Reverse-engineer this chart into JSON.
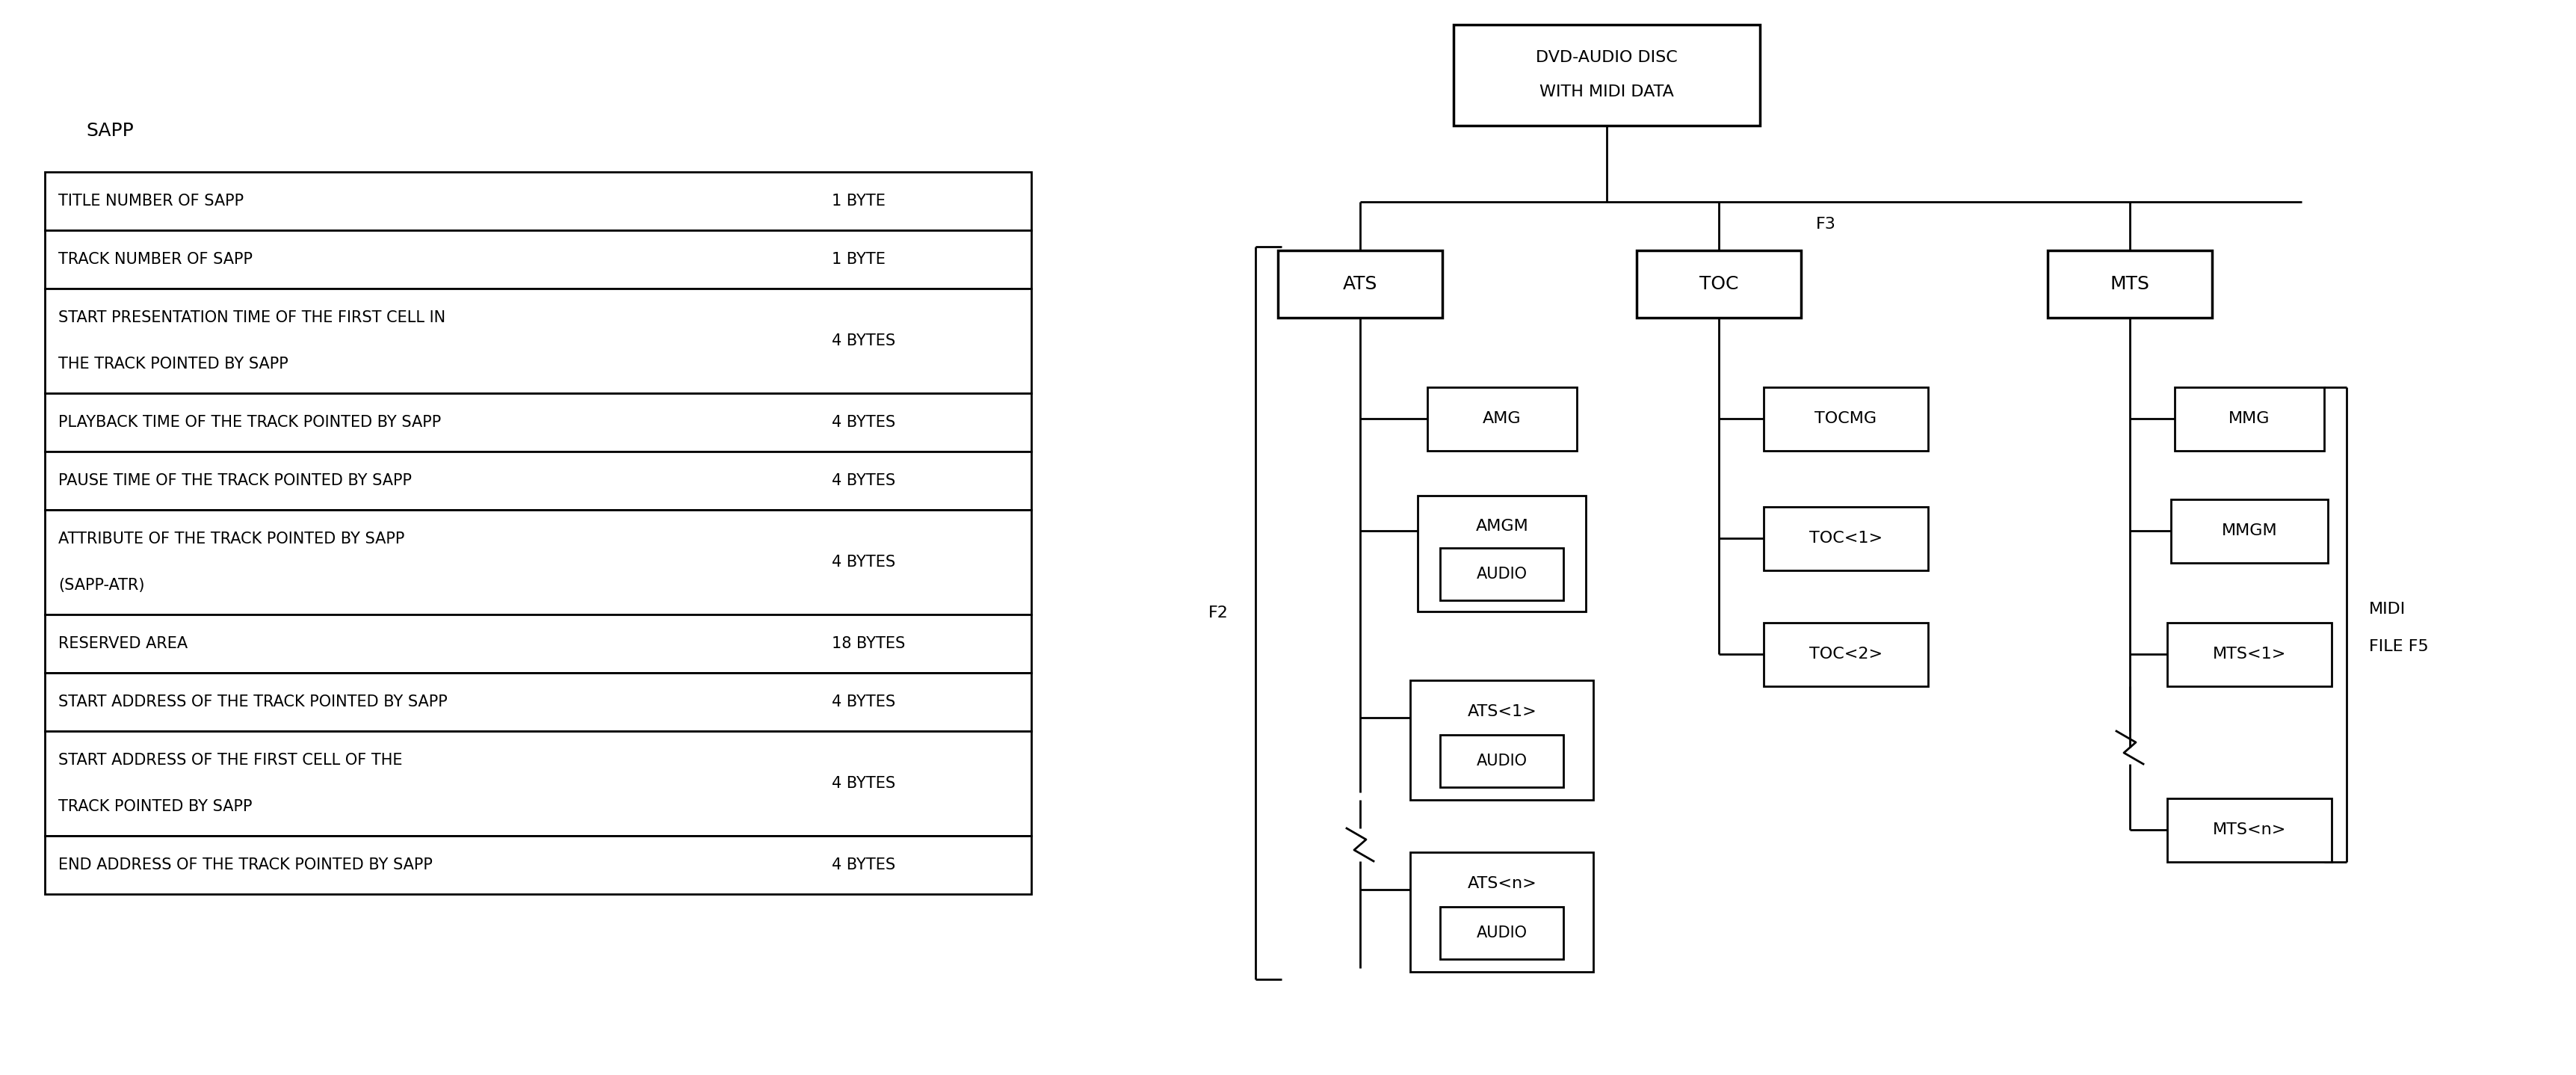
{
  "table_title": "SAPP",
  "table_rows": [
    {
      "desc": "TITLE NUMBER OF SAPP",
      "size": "1 BYTE",
      "two_line": false
    },
    {
      "desc": "TRACK NUMBER OF SAPP",
      "size": "1 BYTE",
      "two_line": false
    },
    {
      "desc": "START PRESENTATION TIME OF THE FIRST CELL IN\nTHE TRACK POINTED BY SAPP",
      "size": "4 BYTES",
      "two_line": true
    },
    {
      "desc": "PLAYBACK TIME OF THE TRACK POINTED BY SAPP",
      "size": "4 BYTES",
      "two_line": false
    },
    {
      "desc": "PAUSE TIME OF THE TRACK POINTED BY SAPP",
      "size": "4 BYTES",
      "two_line": false
    },
    {
      "desc": "ATTRIBUTE OF THE TRACK POINTED BY SAPP\n(SAPP-ATR)",
      "size": "4 BYTES",
      "two_line": true
    },
    {
      "desc": "RESERVED AREA",
      "size": "18 BYTES",
      "two_line": false
    },
    {
      "desc": "START ADDRESS OF THE TRACK POINTED BY SAPP",
      "size": "4 BYTES",
      "two_line": false
    },
    {
      "desc": "START ADDRESS OF THE FIRST CELL OF THE\nTRACK POINTED BY SAPP",
      "size": "4 BYTES",
      "two_line": true
    },
    {
      "desc": "END ADDRESS OF THE TRACK POINTED BY SAPP",
      "size": "4 BYTES",
      "two_line": false
    }
  ],
  "bg_color": "#ffffff",
  "text_color": "#000000",
  "line_color": "#000000",
  "font_size_table": 15,
  "font_size_diagram": 16,
  "font_size_title": 17,
  "font_size_sapp": 18
}
